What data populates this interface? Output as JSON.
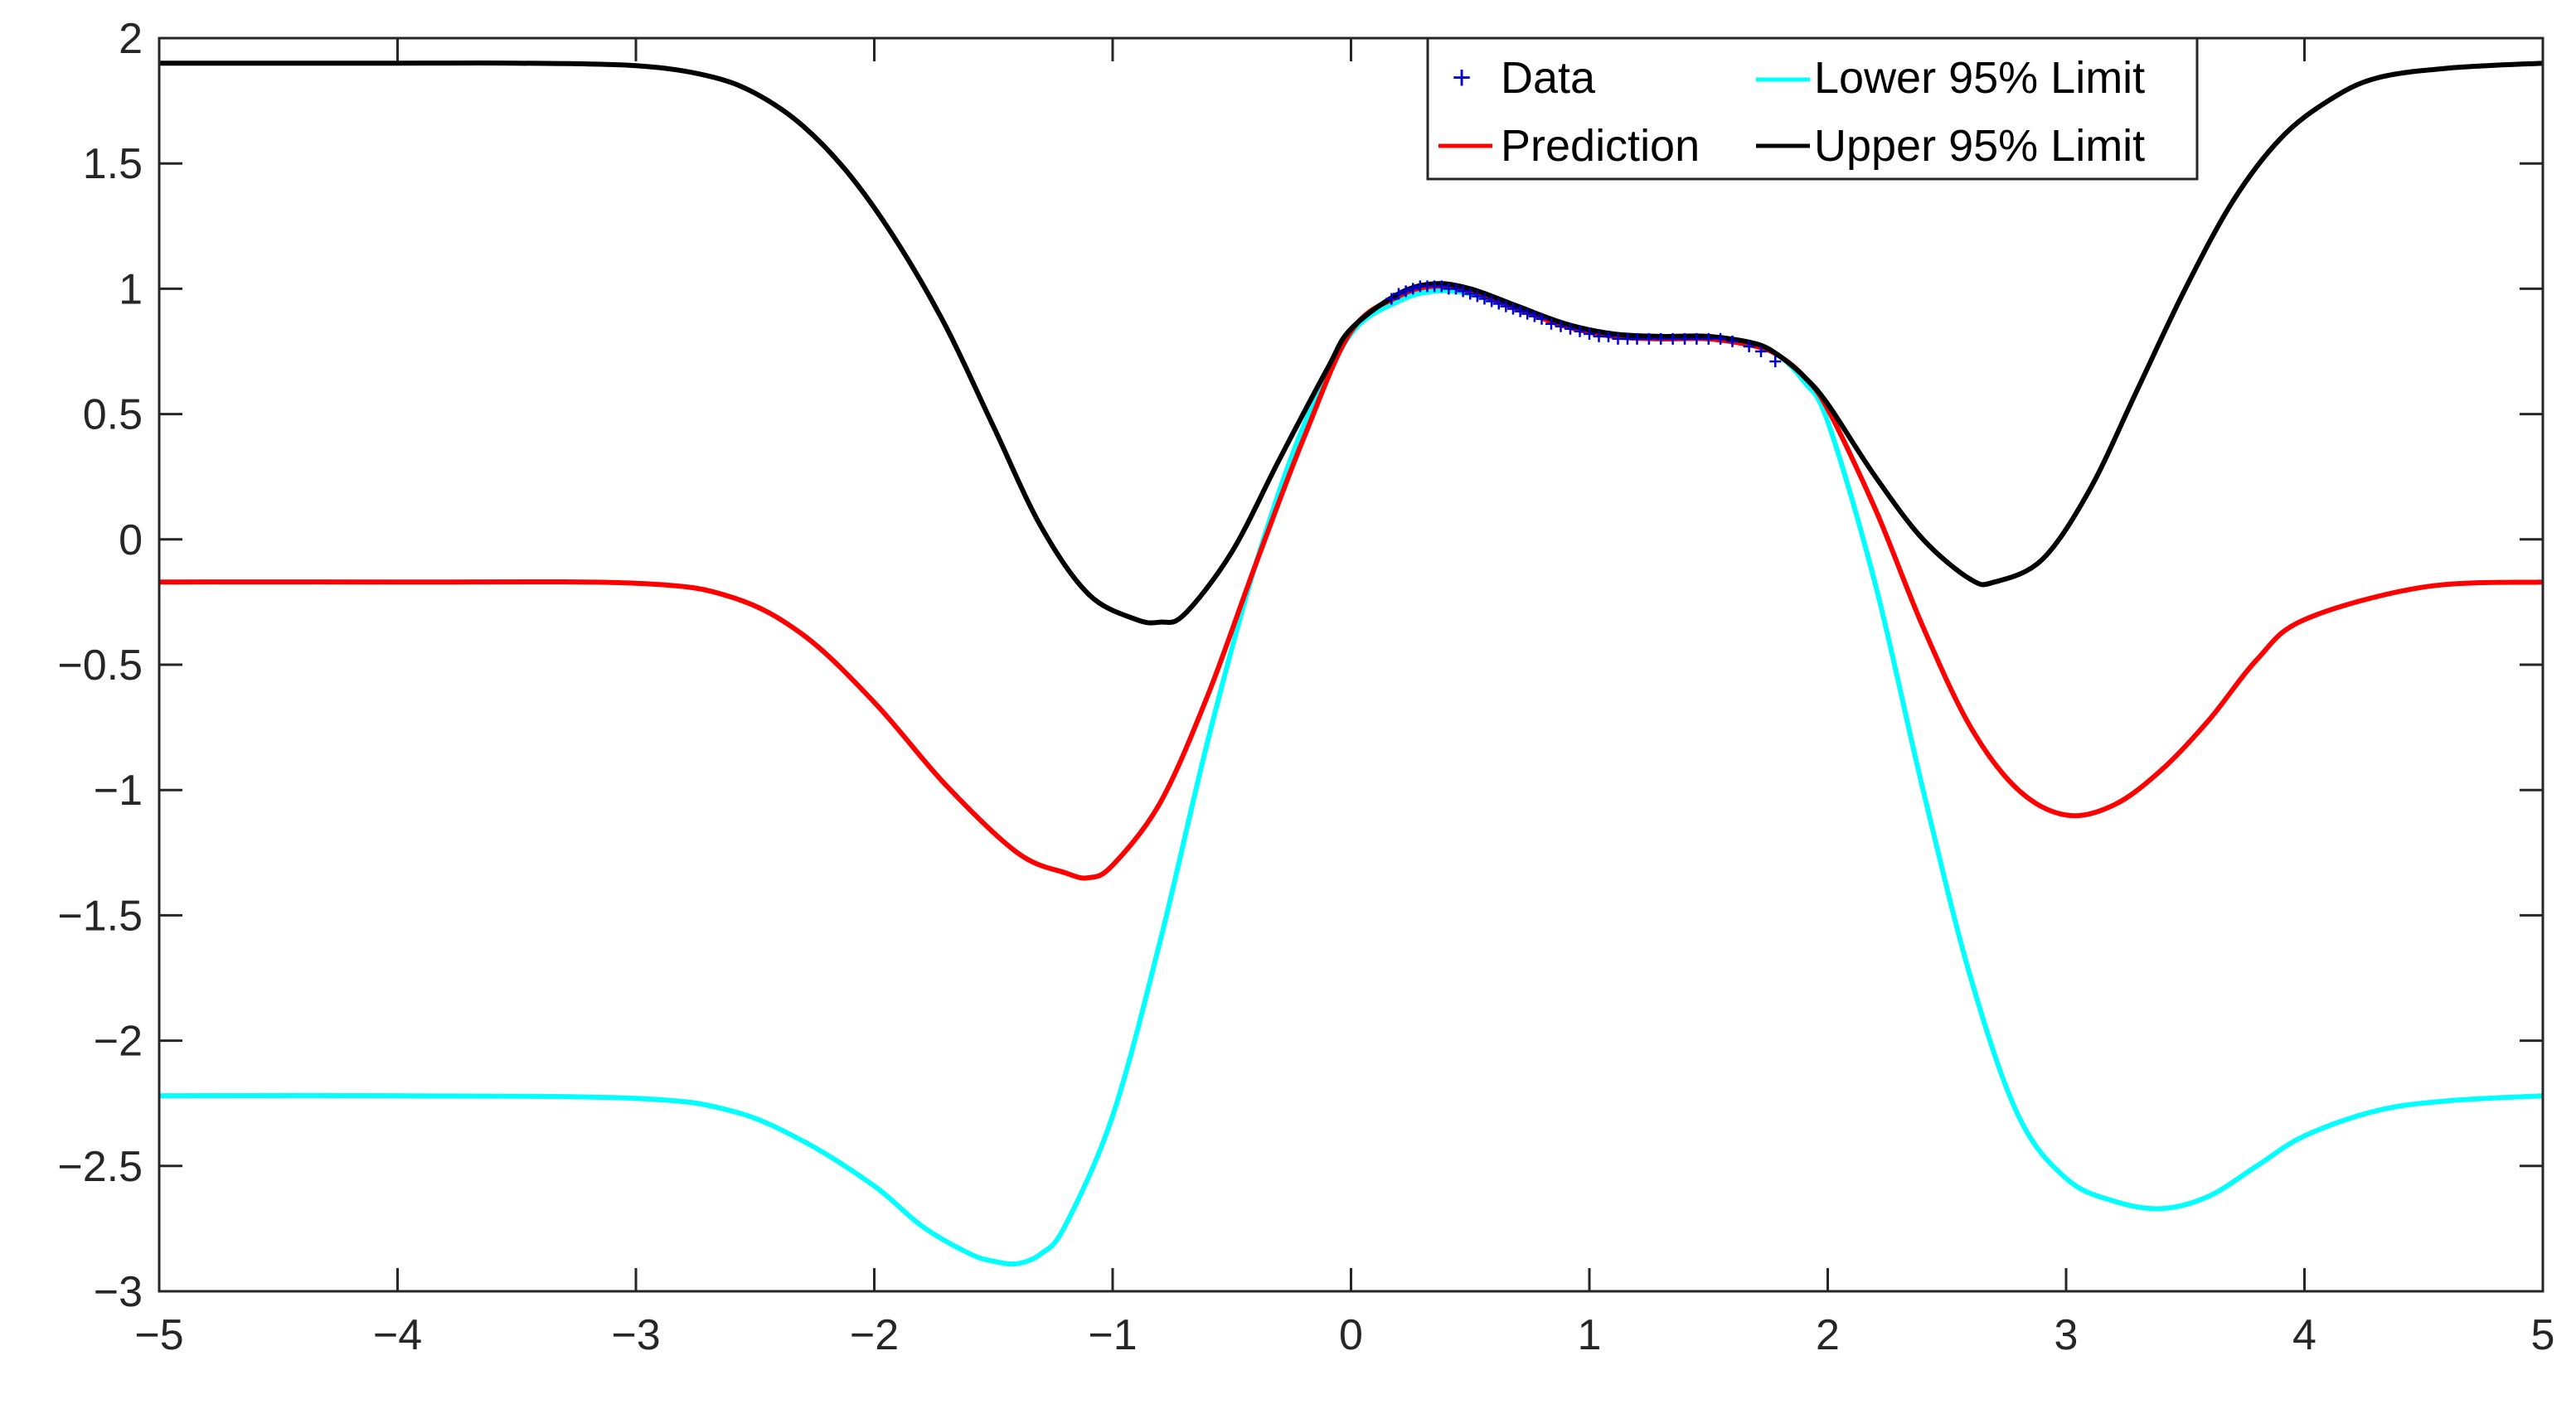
{
  "chart_data": {
    "type": "line",
    "title": "",
    "xlabel": "",
    "ylabel": "",
    "xlim": [
      -5,
      5
    ],
    "ylim": [
      -3,
      2
    ],
    "grid": false,
    "legend_position": "top-right",
    "x_ticks": [
      -5,
      -4,
      -3,
      -2,
      -1,
      0,
      1,
      2,
      3,
      4,
      5
    ],
    "x_tick_labels": [
      "−5",
      "−4",
      "−3",
      "−2",
      "−1",
      "0",
      "1",
      "2",
      "3",
      "4",
      "5"
    ],
    "y_ticks": [
      2,
      1.5,
      1,
      0.5,
      0,
      -0.5,
      -1,
      -1.5,
      -2,
      -2.5,
      -3
    ],
    "y_tick_labels": [
      "2",
      "1.5",
      "1",
      "0.5",
      "0",
      "−0.5",
      "−1",
      "−1.5",
      "−2",
      "−2.5",
      "−3"
    ],
    "legend": [
      {
        "label": "Data",
        "marker": "+",
        "color": "#0000cc"
      },
      {
        "label": "Prediction",
        "color": "#ff0000"
      },
      {
        "label": "Lower 95% Limit",
        "color": "#00ffff"
      },
      {
        "label": "Upper 95% Limit",
        "color": "#000000"
      }
    ],
    "series": [
      {
        "name": "Prediction",
        "color": "#ff0000",
        "x": [
          -5,
          -4,
          -3,
          -2.6,
          -2.3,
          -2.0,
          -1.7,
          -1.4,
          -1.2,
          -1.1,
          -1.0,
          -0.8,
          -0.6,
          -0.4,
          -0.2,
          0,
          0.2,
          0.35,
          0.5,
          0.7,
          0.9,
          1.1,
          1.3,
          1.5,
          1.7,
          1.8,
          1.9,
          2.0,
          2.2,
          2.4,
          2.6,
          2.8,
          3.0,
          3.2,
          3.4,
          3.6,
          3.8,
          4.0,
          4.5,
          5.0
        ],
        "values": [
          -0.17,
          -0.17,
          -0.175,
          -0.23,
          -0.38,
          -0.65,
          -0.98,
          -1.25,
          -1.33,
          -1.35,
          -1.3,
          -1.05,
          -0.62,
          -0.1,
          0.4,
          0.83,
          0.97,
          1.01,
          0.99,
          0.92,
          0.85,
          0.81,
          0.8,
          0.8,
          0.77,
          0.73,
          0.65,
          0.52,
          0.12,
          -0.35,
          -0.75,
          -1.0,
          -1.1,
          -1.06,
          -0.92,
          -0.72,
          -0.48,
          -0.32,
          -0.19,
          -0.17
        ]
      },
      {
        "name": "Lower 95% Limit",
        "color": "#00ffff",
        "x": [
          -5,
          -4,
          -3,
          -2.6,
          -2.3,
          -2.0,
          -1.8,
          -1.6,
          -1.5,
          -1.4,
          -1.3,
          -1.2,
          -1.0,
          -0.8,
          -0.6,
          -0.4,
          -0.2,
          0,
          0.2,
          0.35,
          0.5,
          0.7,
          0.9,
          1.1,
          1.3,
          1.5,
          1.7,
          1.8,
          1.9,
          2.0,
          2.2,
          2.4,
          2.6,
          2.8,
          3.0,
          3.2,
          3.4,
          3.6,
          3.8,
          4.0,
          4.3,
          4.6,
          5.0
        ],
        "values": [
          -2.22,
          -2.22,
          -2.23,
          -2.28,
          -2.4,
          -2.58,
          -2.74,
          -2.85,
          -2.88,
          -2.89,
          -2.85,
          -2.74,
          -2.3,
          -1.6,
          -0.8,
          -0.1,
          0.45,
          0.82,
          0.95,
          0.99,
          0.98,
          0.92,
          0.85,
          0.81,
          0.8,
          0.8,
          0.77,
          0.73,
          0.63,
          0.47,
          -0.18,
          -1.0,
          -1.75,
          -2.3,
          -2.55,
          -2.64,
          -2.67,
          -2.62,
          -2.5,
          -2.38,
          -2.28,
          -2.24,
          -2.22
        ]
      },
      {
        "name": "Upper 95% Limit",
        "color": "#000000",
        "x": [
          -5,
          -4,
          -3.5,
          -3,
          -2.7,
          -2.5,
          -2.3,
          -2.1,
          -1.9,
          -1.7,
          -1.5,
          -1.3,
          -1.1,
          -0.9,
          -0.8,
          -0.7,
          -0.5,
          -0.3,
          -0.1,
          0,
          0.2,
          0.35,
          0.5,
          0.7,
          0.9,
          1.1,
          1.3,
          1.5,
          1.7,
          1.8,
          1.9,
          2.0,
          2.2,
          2.4,
          2.6,
          2.7,
          2.9,
          3.1,
          3.3,
          3.5,
          3.7,
          3.9,
          4.1,
          4.3,
          4.6,
          5.0
        ],
        "values": [
          1.9,
          1.9,
          1.9,
          1.89,
          1.85,
          1.78,
          1.65,
          1.45,
          1.18,
          0.85,
          0.45,
          0.05,
          -0.22,
          -0.32,
          -0.33,
          -0.3,
          -0.05,
          0.32,
          0.68,
          0.84,
          0.98,
          1.02,
          1.0,
          0.93,
          0.86,
          0.82,
          0.81,
          0.81,
          0.78,
          0.73,
          0.65,
          0.54,
          0.25,
          0.0,
          -0.16,
          -0.17,
          -0.08,
          0.2,
          0.6,
          1.0,
          1.35,
          1.6,
          1.75,
          1.84,
          1.88,
          1.9
        ]
      }
    ],
    "data_points": {
      "name": "Data",
      "color": "#0000cc",
      "x": [
        0.17,
        0.2,
        0.23,
        0.26,
        0.29,
        0.32,
        0.35,
        0.38,
        0.41,
        0.44,
        0.47,
        0.5,
        0.53,
        0.56,
        0.59,
        0.62,
        0.65,
        0.68,
        0.71,
        0.74,
        0.77,
        0.8,
        0.84,
        0.88,
        0.92,
        0.96,
        1.0,
        1.04,
        1.08,
        1.12,
        1.16,
        1.2,
        1.25,
        1.3,
        1.35,
        1.4,
        1.45,
        1.5,
        1.55,
        1.6,
        1.67,
        1.72,
        1.78
      ],
      "values": [
        0.96,
        0.98,
        0.99,
        1.0,
        1.01,
        1.01,
        1.01,
        1.01,
        1.0,
        1.0,
        0.99,
        0.98,
        0.97,
        0.96,
        0.95,
        0.94,
        0.93,
        0.92,
        0.91,
        0.9,
        0.89,
        0.88,
        0.86,
        0.85,
        0.84,
        0.83,
        0.82,
        0.81,
        0.81,
        0.8,
        0.8,
        0.8,
        0.8,
        0.8,
        0.8,
        0.8,
        0.8,
        0.8,
        0.8,
        0.79,
        0.77,
        0.75,
        0.71
      ]
    }
  }
}
